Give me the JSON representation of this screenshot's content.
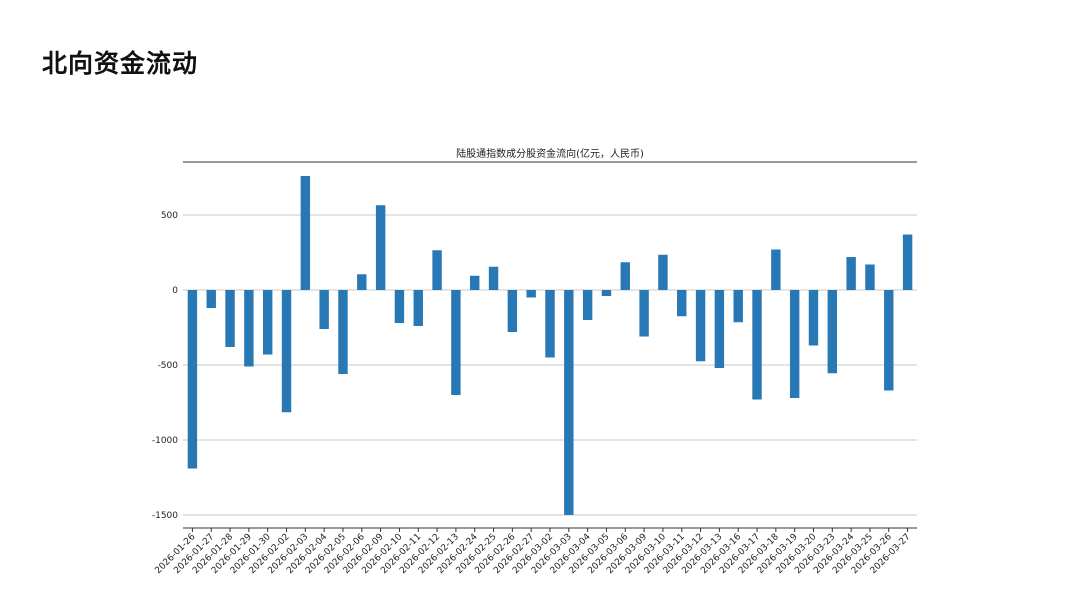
{
  "page": {
    "title": "北向资金流动"
  },
  "chart_data": {
    "type": "bar",
    "title": "陆股通指数成分股资金流向(亿元，人民币)",
    "xlabel": "",
    "ylabel": "",
    "ylim": [
      -1500,
      800
    ],
    "yticks": [
      -1500,
      -1000,
      -500,
      0,
      500
    ],
    "grid": "horizontal",
    "color": "#2878b5",
    "categories": [
      "2026-01-26",
      "2026-01-27",
      "2026-01-28",
      "2026-01-29",
      "2026-01-30",
      "2026-02-02",
      "2026-02-03",
      "2026-02-04",
      "2026-02-05",
      "2026-02-06",
      "2026-02-09",
      "2026-02-10",
      "2026-02-11",
      "2026-02-12",
      "2026-02-13",
      "2026-02-24",
      "2026-02-25",
      "2026-02-26",
      "2026-02-27",
      "2026-03-02",
      "2026-03-03",
      "2026-03-04",
      "2026-03-05",
      "2026-03-06",
      "2026-03-09",
      "2026-03-10",
      "2026-03-11",
      "2026-03-12",
      "2026-03-13",
      "2026-03-16",
      "2026-03-17",
      "2026-03-18",
      "2026-03-19",
      "2026-03-20",
      "2026-03-23",
      "2026-03-24",
      "2026-03-25",
      "2026-03-26",
      "2026-03-27"
    ],
    "values": [
      -1190,
      -120,
      -380,
      -510,
      -430,
      -815,
      760,
      -260,
      -560,
      105,
      565,
      -220,
      -240,
      265,
      -700,
      95,
      155,
      -280,
      -50,
      -450,
      -1500,
      -200,
      -40,
      185,
      -310,
      235,
      -175,
      -475,
      -520,
      -215,
      -730,
      270,
      -720,
      -370,
      -555,
      220,
      170,
      -670,
      370
    ]
  }
}
